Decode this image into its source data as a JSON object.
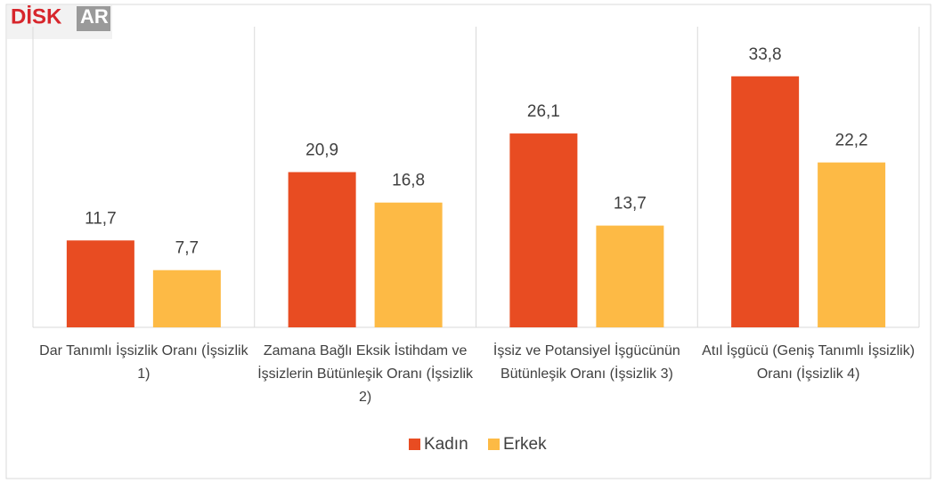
{
  "chart_data": {
    "type": "bar",
    "annotations": [
      "DİSK",
      "AR"
    ],
    "categories": [
      "Dar Tanımlı İşsizlik Oranı (İşsizlik 1)",
      "Zamana Bağlı Eksik İstihdam ve İşsizlerin Bütünleşik Oranı (İşsizlik 2)",
      "İşsiz ve Potansiyel İşgücünün Bütünleşik Oranı (İşsizlik 3)",
      "Atıl İşgücü (Geniş Tanımlı İşsizlik) Oranı (İşsizlik 4)"
    ],
    "series": [
      {
        "name": "Kadın",
        "color": "#E84C22",
        "values": [
          11.7,
          20.9,
          26.1,
          33.8
        ],
        "value_labels": [
          "11,7",
          "20,9",
          "26,1",
          "33,8"
        ]
      },
      {
        "name": "Erkek",
        "color": "#FDBA45",
        "values": [
          7.7,
          16.8,
          13.7,
          22.2
        ],
        "value_labels": [
          "7,7",
          "16,8",
          "13,7",
          "22,2"
        ]
      }
    ],
    "ylim": [
      0,
      40
    ],
    "legend": "bottom"
  }
}
